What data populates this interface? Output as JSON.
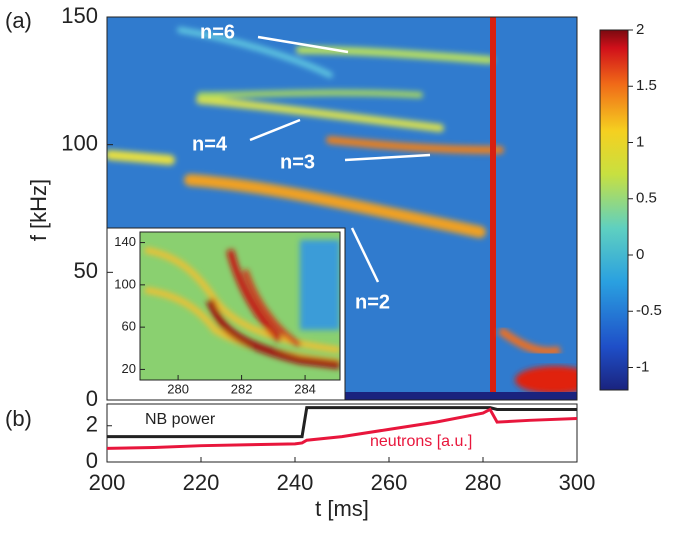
{
  "chart_data": [
    {
      "type": "heatmap",
      "panel_label": "(a)",
      "ylabel": "f  [kHz]",
      "ylim": [
        0,
        150
      ],
      "yticks": [
        0,
        50,
        100,
        150
      ],
      "annotations": [
        "n=6",
        "n=4",
        "n=3",
        "n=2"
      ],
      "colorbar": {
        "clim": [
          -1.2,
          2
        ],
        "ticks": [
          -1,
          -0.5,
          0,
          0.5,
          1,
          1.5,
          2
        ]
      }
    },
    {
      "type": "heatmap",
      "xlim": [
        278.8,
        285.1
      ],
      "xticks": [
        280,
        282,
        284
      ],
      "ylim": [
        10,
        150
      ],
      "yticks": [
        20,
        60,
        100,
        140
      ]
    },
    {
      "type": "line",
      "panel_label": "(b)",
      "xlabel": "t  [ms]",
      "xlim": [
        200,
        300
      ],
      "xticks": [
        200,
        220,
        240,
        260,
        280,
        300
      ],
      "ylim": [
        0,
        3.2
      ],
      "yticks": [
        0,
        2
      ],
      "x": [
        200,
        210,
        220,
        230,
        240,
        241.5,
        242.5,
        250,
        260,
        270,
        280,
        281.5,
        283,
        290,
        300
      ],
      "series": [
        {
          "name": "NB power",
          "color": "#222222",
          "values": [
            1.4,
            1.4,
            1.4,
            1.4,
            1.4,
            1.4,
            3.0,
            3.0,
            3.0,
            3.0,
            3.0,
            3.0,
            2.9,
            2.9,
            2.9
          ]
        },
        {
          "name": "neutrons [a.u.]",
          "color": "#e8163c",
          "values": [
            0.75,
            0.8,
            0.9,
            0.95,
            1.0,
            1.05,
            1.2,
            1.4,
            1.8,
            2.2,
            2.7,
            2.9,
            2.2,
            2.3,
            2.4
          ]
        }
      ]
    }
  ]
}
